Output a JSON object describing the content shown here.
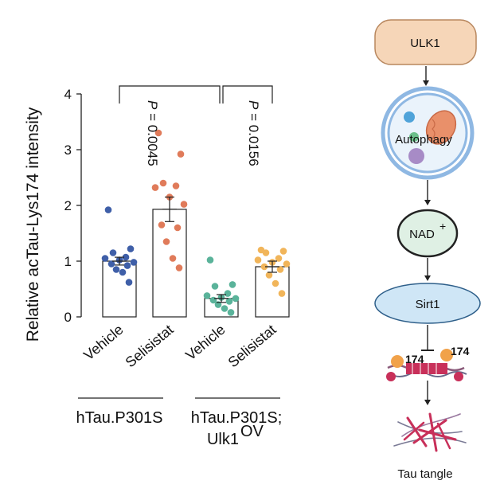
{
  "chart_data": {
    "type": "bar",
    "ylabel": "Relative acTau-Lys174 intensity",
    "ylim": [
      0,
      4
    ],
    "yticks": [
      0,
      1,
      2,
      3,
      4
    ],
    "categories": [
      "Vehicle",
      "Selisistat",
      "Vehicle",
      "Selisistat"
    ],
    "groups": [
      {
        "label": "hTau.P301S",
        "label_line2": "",
        "sup": "",
        "categories": [
          0,
          1
        ]
      },
      {
        "label": "hTau.P301S;",
        "label_line2": "Ulk1",
        "sup": "OV",
        "categories": [
          2,
          3
        ]
      }
    ],
    "series": [
      {
        "values": [
          1.0,
          1.93,
          0.33,
          0.9
        ],
        "sem": [
          0.07,
          0.22,
          0.07,
          0.1
        ],
        "color": "#3f5fa8",
        "points": [
          1.92,
          1.22,
          1.15,
          1.07,
          1.05,
          1.02,
          0.98,
          0.95,
          0.92,
          0.85,
          0.8,
          0.62
        ]
      },
      {
        "color": "#e07b5a",
        "points": [
          3.3,
          2.92,
          2.4,
          2.35,
          2.32,
          2.15,
          2.02,
          1.65,
          1.6,
          1.35,
          1.05,
          0.88
        ]
      },
      {
        "color": "#5ab39a",
        "points": [
          1.02,
          0.58,
          0.55,
          0.42,
          0.38,
          0.35,
          0.33,
          0.3,
          0.28,
          0.22,
          0.15,
          0.08
        ]
      },
      {
        "color": "#f1b55a",
        "points": [
          1.2,
          1.18,
          1.15,
          1.05,
          1.02,
          0.98,
          0.95,
          0.9,
          0.85,
          0.75,
          0.6,
          0.42
        ]
      }
    ],
    "annotations": [
      {
        "text": "P = 0.0045",
        "italic": "P",
        "rest": " = 0.0045",
        "between": [
          0,
          2
        ]
      },
      {
        "text": "P = 0.0156",
        "italic": "P",
        "rest": " = 0.0156",
        "between": [
          2,
          3
        ]
      }
    ],
    "grid": false
  },
  "pathway": {
    "nodes": [
      "ULK1",
      "Autophagy",
      "NAD",
      "Sirt1",
      "Tau tangle"
    ],
    "nad_sup": "+",
    "tau_labels": [
      "174",
      "174"
    ],
    "colors": {
      "ulk1_fill": "#f6d6b8",
      "ulk1_stroke": "#b8875e",
      "ring": "#8fb8e3",
      "nad_fill": "#dff0e4",
      "sirt1_fill": "#cfe6f6",
      "tangle": "#c8305a",
      "ac": "#f1a24a"
    }
  }
}
